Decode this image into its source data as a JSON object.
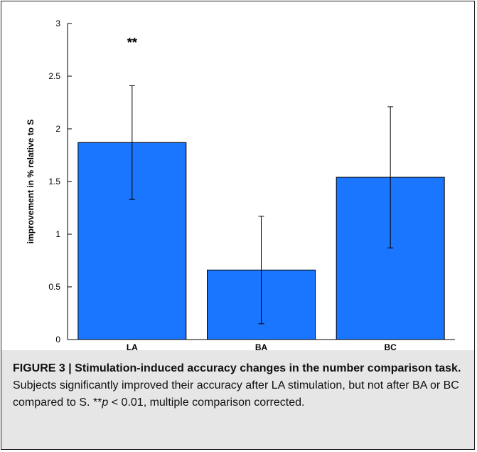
{
  "chart_data": {
    "type": "bar",
    "categories": [
      "LA",
      "BA",
      "BC"
    ],
    "values": [
      1.87,
      0.66,
      1.54
    ],
    "error_low": [
      1.33,
      0.15,
      0.87
    ],
    "error_high": [
      2.41,
      1.17,
      2.21
    ],
    "ylabel": "improvement in % relative to S",
    "xlabel": "",
    "ylim": [
      0,
      3
    ],
    "yticks": [
      0,
      0.5,
      1,
      1.5,
      2,
      2.5,
      3
    ],
    "ytick_labels": [
      "0",
      "0.5",
      "1",
      "1.5",
      "2",
      "2.5",
      "3"
    ],
    "bar_color": "#1a75ff",
    "annotations": [
      {
        "category": "LA",
        "text": "**"
      }
    ],
    "grid": false
  },
  "caption": {
    "title": "FIGURE 3 | Stimulation-induced accuracy changes in the number comparison task.",
    "body_before": " Subjects significantly improved their accuracy after LA stimulation, but not after BA or BC compared to S. **",
    "italic": "p",
    "body_after": " < 0.01, multiple comparison corrected."
  }
}
